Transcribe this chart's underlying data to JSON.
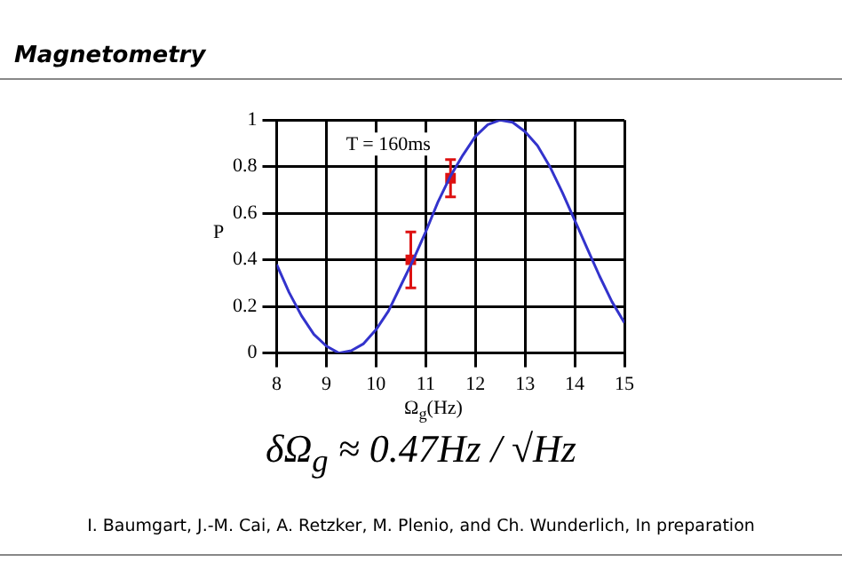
{
  "chart_data": {
    "type": "line",
    "title": "Magnetometry",
    "xlabel": "Ω$_{g}$(Hz)",
    "ylabel": "P",
    "annotations": [
      "T = 160ms",
      "δΩ$_{g}$ ≈ 0.47Hz / √Hz",
      "I. Baumgart, J.-M. Cai, A. Retzker, M. Plenio, and Ch. Wunderlich, In preparation"
    ],
    "series": [
      {
        "color": "#3333cc",
        "x": [
          8,
          8.25,
          8.5,
          8.75,
          9,
          9.25,
          9.5,
          9.75,
          10,
          10.25,
          10.5,
          10.75,
          11,
          11.25,
          11.5,
          11.75,
          12,
          12.25,
          12.5,
          12.75,
          13,
          13.25,
          13.5,
          13.75,
          14,
          14.25,
          14.5,
          14.75,
          15
        ],
        "values": [
          0.38,
          0.26,
          0.16,
          0.08,
          0.03,
          0,
          0.01,
          0.04,
          0.1,
          0.18,
          0.29,
          0.4,
          0.52,
          0.65,
          0.76,
          0.85,
          0.93,
          0.98,
          1,
          0.99,
          0.95,
          0.89,
          0.8,
          0.69,
          0.57,
          0.45,
          0.33,
          0.22,
          0.13
        ]
      },
      {
        "type": "scatter",
        "marker": "square",
        "color": "#dd1111",
        "x": [
          10.7,
          11.5
        ],
        "values": [
          0.4,
          0.75
        ],
        "errors": [
          [
            0.28,
            0.52
          ],
          [
            0.67,
            0.83
          ]
        ]
      }
    ],
    "xlim": [
      8,
      15
    ],
    "xticks": [
      8,
      9,
      10,
      11,
      12,
      13,
      14,
      15
    ],
    "ylim": [
      0,
      1
    ],
    "yticks": [
      0,
      0.2,
      0.4,
      0.6,
      0.8,
      1
    ],
    "grid": true,
    "legend": false,
    "line_style": "solid"
  }
}
